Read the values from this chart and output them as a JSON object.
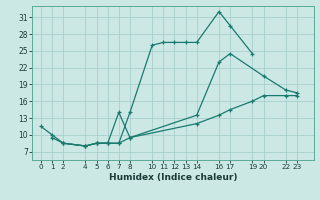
{
  "xlabel": "Humidex (Indice chaleur)",
  "bg_color": "#cce8e5",
  "grid_color": "#aacfcc",
  "line_color": "#1a7a6e",
  "xtick_labels": [
    "0",
    "1",
    "2",
    "4",
    "5",
    "6",
    "7",
    "8",
    "10",
    "11",
    "12",
    "13",
    "14",
    "16",
    "17",
    "19",
    "20",
    "22",
    "23"
  ],
  "xtick_pos": [
    0,
    1,
    2,
    4,
    5,
    6,
    7,
    8,
    10,
    11,
    12,
    13,
    14,
    16,
    17,
    19,
    20,
    22,
    23
  ],
  "yticks": [
    7,
    10,
    13,
    16,
    19,
    22,
    25,
    28,
    31
  ],
  "ylim": [
    5.5,
    33
  ],
  "xlim": [
    -0.8,
    24.5
  ],
  "curve1": {
    "x": [
      0,
      1,
      2,
      4,
      5,
      6,
      7,
      8,
      10,
      11,
      12,
      13,
      14,
      16,
      17,
      19
    ],
    "y": [
      11.5,
      10,
      8.5,
      8,
      8.5,
      8.5,
      8.5,
      14,
      26,
      26.5,
      26.5,
      26.5,
      26.5,
      32,
      29.5,
      24.5
    ]
  },
  "curve2": {
    "x": [
      2,
      4,
      5,
      6,
      7,
      8,
      14,
      16,
      17,
      20,
      22,
      23
    ],
    "y": [
      8.5,
      8,
      8.5,
      8.5,
      14,
      9.5,
      13.5,
      23,
      24.5,
      20.5,
      18,
      17.5
    ]
  },
  "curve3": {
    "x": [
      1,
      2,
      4,
      5,
      6,
      7,
      8,
      14,
      16,
      17,
      19,
      20,
      22,
      23
    ],
    "y": [
      9.5,
      8.5,
      8,
      8.5,
      8.5,
      8.5,
      9.5,
      12,
      13.5,
      14.5,
      16,
      17,
      17,
      17
    ]
  }
}
